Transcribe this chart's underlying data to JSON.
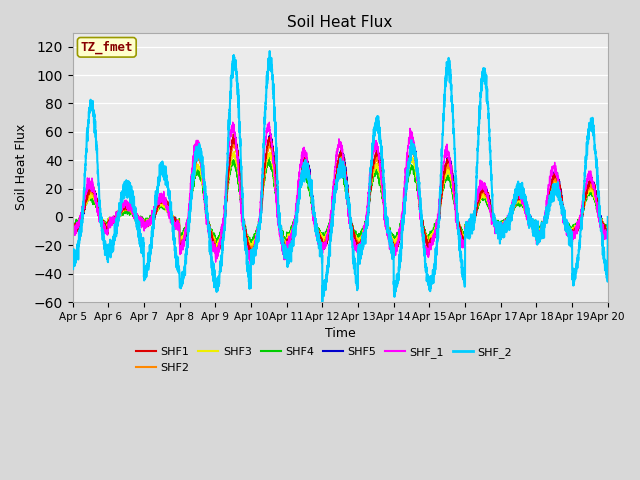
{
  "title": "Soil Heat Flux",
  "xlabel": "Time",
  "ylabel": "Soil Heat Flux",
  "ylim": [
    -60,
    130
  ],
  "yticks": [
    -60,
    -40,
    -20,
    0,
    20,
    40,
    60,
    80,
    100,
    120
  ],
  "xtick_labels": [
    "Apr 5",
    "Apr 6",
    "Apr 7",
    "Apr 8",
    "Apr 9",
    "Apr 10",
    "Apr 11",
    "Apr 12",
    "Apr 13",
    "Apr 14",
    "Apr 15",
    "Apr 16",
    "Apr 17",
    "Apr 18",
    "Apr 19",
    "Apr 20"
  ],
  "series_colors": {
    "SHF1": "#dd0000",
    "SHF2": "#ff8800",
    "SHF3": "#eeee00",
    "SHF4": "#00cc00",
    "SHF5": "#0000cc",
    "SHF_1": "#ff00ff",
    "SHF_2": "#00ccff"
  },
  "annotation_text": "TZ_fmet",
  "annotation_color": "#880000",
  "annotation_bg": "#ffffcc",
  "annotation_border": "#999900",
  "bg_color": "#d8d8d8",
  "plot_bg": "#ebebeb",
  "linewidth": 1.0,
  "cyan_linewidth": 1.5,
  "figsize": [
    6.4,
    4.8
  ],
  "dpi": 100,
  "day_peak_amps": [
    20,
    8,
    12,
    45,
    55,
    55,
    40,
    45,
    45,
    50,
    40,
    20,
    15,
    30,
    25
  ],
  "cyan_day_peaks": [
    78,
    22,
    34,
    48,
    110,
    110,
    35,
    35,
    67,
    48,
    106,
    102,
    20,
    20,
    65,
    118
  ],
  "cyan_day_troughs": [
    -30,
    -23,
    -40,
    -47,
    -48,
    -27,
    -27,
    -50,
    -26,
    -50,
    -46,
    -10,
    -10,
    -15,
    -42,
    -30
  ]
}
